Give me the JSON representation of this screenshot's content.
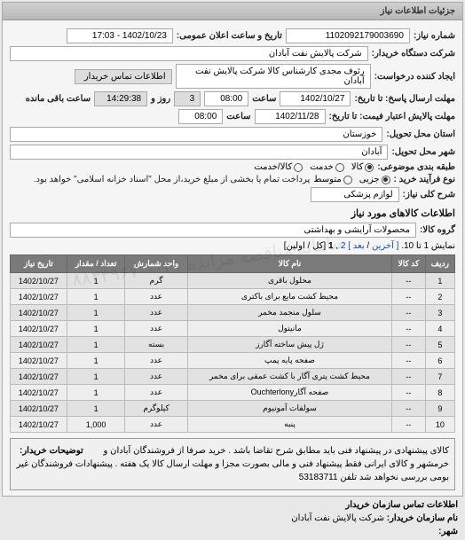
{
  "panel_title": "جزئیات اطلاعات نیاز",
  "fields": {
    "number_label": "شماره نیاز:",
    "number_value": "1102092179003690",
    "datetime_label": "تاریخ و ساعت اعلان عمومی:",
    "datetime_value": "1402/10/23 - 17:03",
    "buyer_org_label": "شرکت دستگاه خریدار:",
    "buyer_org_value": "شرکت پالایش نفت آبادان",
    "requester_label": "ایجاد کننده درخواست:",
    "requester_value": "رئوف مجدی کارشناس کالا شرکت پالایش نفت آبادان",
    "contact_label": "اطلاعات تماس خریدار",
    "deadline_send_label": "مهلت ارسال پاسخ: تا تاریخ:",
    "deadline_send_date": "1402/10/27",
    "hour_label": "ساعت",
    "deadline_send_time": "08:00",
    "remain_days": "3",
    "remain_day_label": "روز و",
    "remain_time": "14:29:38",
    "remain_time_label": "ساعت باقی مانده",
    "quote_deadline_label": "مهلت پالایش اعتبار فیمت: تا تاریخ:",
    "quote_deadline_date": "1402/11/28",
    "quote_deadline_time": "08:00",
    "buyer_province_label": "استان محل تحویل:",
    "buyer_province_value": "خوزستان",
    "buyer_city_label": "شهر محل تحویل:",
    "buyer_city_value": "آبادان",
    "class_label": "طبقه بندی موضوعی:",
    "class_goods": "کالا",
    "class_service": "خدمت",
    "class_goods_service": "کالا/خدمت",
    "process_label": "نوع فرآیند خرید :",
    "process_small": "جزیی",
    "process_medium": "متوسط",
    "process_note": "پرداخت تمام یا بخشی از مبلغ خرید،از محل \"اسناد خزانه اسلامی\" خواهد بود.",
    "need_title_label": "شرح کلی نیاز:",
    "need_title_value": "لوازم پزشکی",
    "section_goods": "اطلاعات کالاهای مورد نیاز",
    "group_label": "گروه کالا:",
    "group_value": "محصولات آرایشی و بهداشتی",
    "pager_text": "نمایش 1 تا 10.",
    "pager_last": "[ آخرین",
    "pager_next": "بعد ]",
    "pager_page1": "1",
    "pager_page2": "2",
    "pager_tail": "[کل / اولین]"
  },
  "table": {
    "headers": [
      "ردیف",
      "کد کالا",
      "نام کالا",
      "واحد شمارش",
      "تعداد / مقدار",
      "تاریخ نیاز"
    ],
    "rows": [
      [
        "1",
        "--",
        "محلول باقری",
        "گرم",
        "1",
        "1402/10/27"
      ],
      [
        "2",
        "--",
        "محیط کشت مایع برای باکتری",
        "عدد",
        "1",
        "1402/10/27"
      ],
      [
        "3",
        "--",
        "سلول منجمد مخمر",
        "عدد",
        "1",
        "1402/10/27"
      ],
      [
        "4",
        "--",
        "مانیتول",
        "عدد",
        "1",
        "1402/10/27"
      ],
      [
        "5",
        "--",
        "ژل پیش ساخته آگارز",
        "بسته",
        "1",
        "1402/10/27"
      ],
      [
        "6",
        "--",
        "صفحه پایه پمپ",
        "عدد",
        "1",
        "1402/10/27"
      ],
      [
        "7",
        "--",
        "محیط کشت پتری آگار با کشت عمقی برای مخمر",
        "عدد",
        "1",
        "1402/10/27"
      ],
      [
        "8",
        "--",
        "صفحه آگارOuchterlony",
        "عدد",
        "1",
        "1402/10/27"
      ],
      [
        "9",
        "--",
        "سولفات آمونیوم",
        "کیلوگرم",
        "1",
        "1402/10/27"
      ],
      [
        "10",
        "--",
        "پنبه",
        "عدد",
        "1,000",
        "1402/10/27"
      ]
    ]
  },
  "notes_label": "توضیحات خریدار:",
  "notes_text": "کالای پیشنهادی در پیشنهاد فنی باید مطابق شرح تقاضا باشد . خرید صرفا از فروشندگان آبادان و خرمشهر و کالای ایرانی فقط پیشنهاد فنی و مالی بصورت مجزا و مهلت ارسال کالا یک هفته . پیشنهادات فروشندگان غیر بومی بررسی نخواهد شد تلفن 53183711",
  "footer": {
    "contact_title": "اطلاعات تماس سازمان خریدار",
    "org_name_label": "نام سازمان خریدار:",
    "org_name_value": "شرکت پالایش نفت آبادان",
    "city_label": "شهر:"
  },
  "watermark": "سامانه مناقصه مزایده ۰۲۱-۸۸۳۴۹۶۷۰",
  "colors": {
    "header_bg": "#c4c4c4",
    "th_bg": "#7a7a7a",
    "td_bg": "#e2e2e2"
  }
}
